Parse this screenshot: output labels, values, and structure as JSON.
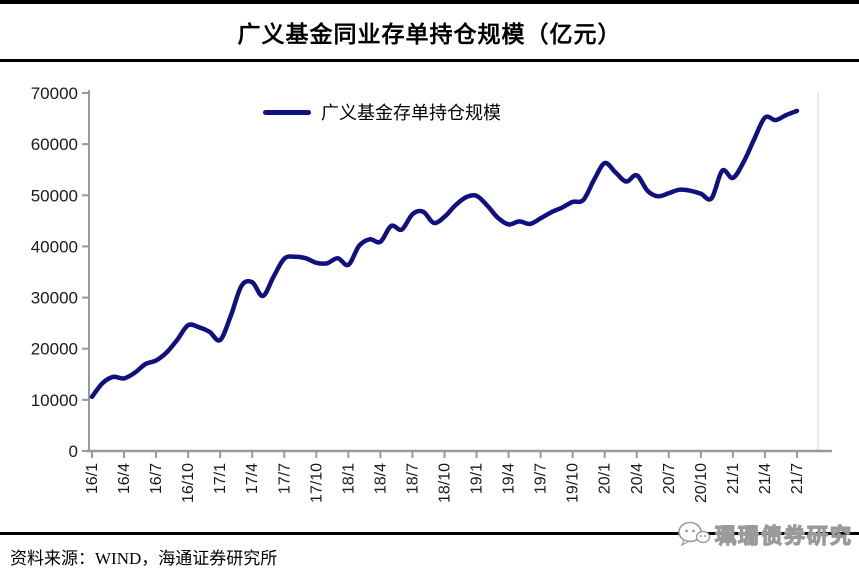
{
  "header": {
    "title": "广义基金同业存单持仓规模（亿元）"
  },
  "legend": {
    "label": "广义基金存单持仓规模"
  },
  "footer": {
    "source_note": "资料来源：WIND，海通证券研究所"
  },
  "watermark": {
    "label": "珮珊债券研究",
    "icon": "wechat-chat-icon"
  },
  "colors": {
    "line": "#101080",
    "axis": "#999999",
    "tick_text": "#1a1a1a",
    "plot_border": "#e0e0e0",
    "rule": "#000000",
    "watermark_grey": "#9a9a9a"
  },
  "chart_data": {
    "type": "line",
    "title": "广义基金同业存单持仓规模（亿元）",
    "xlabel": "",
    "ylabel": "",
    "ylim": [
      0,
      70000
    ],
    "y_ticks": [
      0,
      10000,
      20000,
      30000,
      40000,
      50000,
      60000,
      70000
    ],
    "grid": false,
    "legend_position": "top-center",
    "x": [
      "16/1",
      "16/2",
      "16/3",
      "16/4",
      "16/5",
      "16/6",
      "16/7",
      "16/8",
      "16/9",
      "16/10",
      "16/11",
      "16/12",
      "17/1",
      "17/2",
      "17/3",
      "17/4",
      "17/5",
      "17/6",
      "17/7",
      "17/8",
      "17/9",
      "17/10",
      "17/11",
      "17/12",
      "18/1",
      "18/2",
      "18/3",
      "18/4",
      "18/5",
      "18/6",
      "18/7",
      "18/8",
      "18/9",
      "18/10",
      "18/11",
      "18/12",
      "19/1",
      "19/2",
      "19/3",
      "19/4",
      "19/5",
      "19/6",
      "19/7",
      "19/8",
      "19/9",
      "19/10",
      "19/11",
      "19/12",
      "20/1",
      "20/2",
      "20/3",
      "20/4",
      "20/5",
      "20/6",
      "20/7",
      "20/8",
      "20/9",
      "20/10",
      "20/11",
      "20/12",
      "21/1",
      "21/2",
      "21/3",
      "21/4",
      "21/5",
      "21/6",
      "21/7"
    ],
    "x_tick_labels": [
      "16/1",
      "16/4",
      "16/7",
      "16/10",
      "17/1",
      "17/4",
      "17/7",
      "17/10",
      "18/1",
      "18/4",
      "18/7",
      "18/10",
      "19/1",
      "19/4",
      "19/7",
      "19/10",
      "20/1",
      "20/4",
      "20/7",
      "20/10",
      "21/1",
      "21/4",
      "21/7"
    ],
    "series": [
      {
        "name": "广义基金存单持仓规模",
        "values": [
          10600,
          13300,
          14500,
          14200,
          15300,
          17000,
          17700,
          19300,
          21800,
          24600,
          24200,
          23300,
          21700,
          26500,
          32300,
          33000,
          30300,
          34100,
          37600,
          38000,
          37700,
          36800,
          36700,
          37700,
          36400,
          40100,
          41400,
          40900,
          44000,
          43300,
          46300,
          46800,
          44600,
          45800,
          48000,
          49600,
          49900,
          48000,
          45600,
          44300,
          44900,
          44400,
          45500,
          46700,
          47600,
          48700,
          49100,
          53000,
          56300,
          54500,
          52700,
          53900,
          50900,
          49800,
          50400,
          51100,
          50900,
          50300,
          49400,
          54800,
          53400,
          56500,
          61000,
          65200,
          64700,
          65700,
          66500
        ]
      }
    ]
  }
}
